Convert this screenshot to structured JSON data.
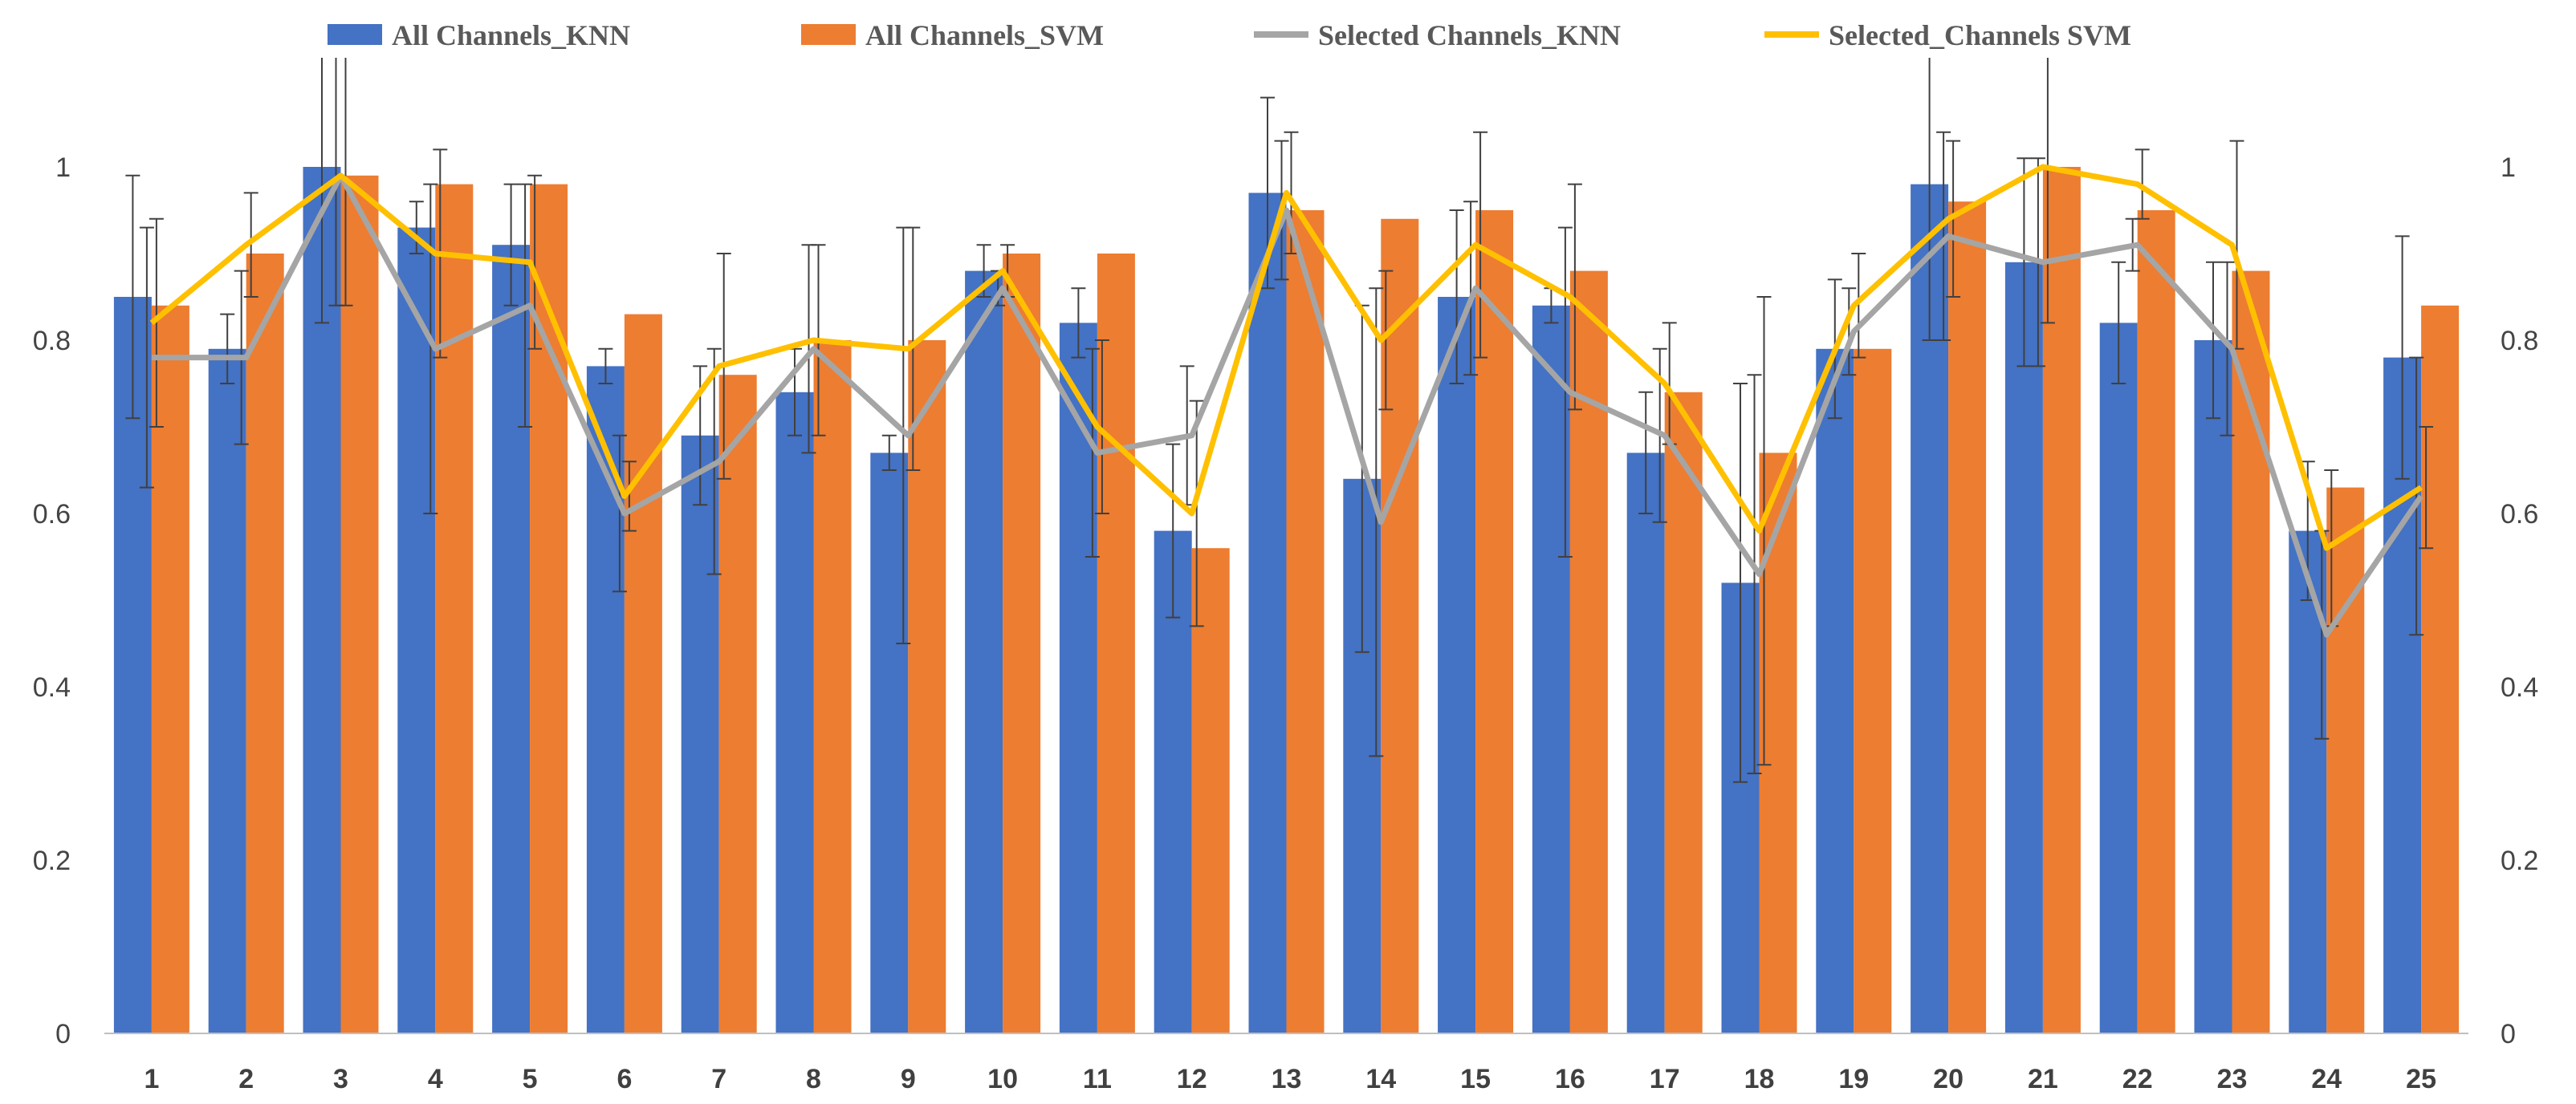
{
  "chart_data": {
    "type": "bar",
    "title": "",
    "xlabel": "",
    "ylabel": "",
    "ylim": [
      0,
      1.1
    ],
    "yticks": [
      0,
      0.2,
      0.4,
      0.6,
      0.8,
      1
    ],
    "ytick_labels": [
      "0",
      "0.2",
      "0.4",
      "0.6",
      "0.8",
      "1"
    ],
    "legend_position": "top",
    "grid": false,
    "categories": [
      "1",
      "2",
      "3",
      "4",
      "5",
      "6",
      "7",
      "8",
      "9",
      "10",
      "11",
      "12",
      "13",
      "14",
      "15",
      "16",
      "17",
      "18",
      "19",
      "20",
      "21",
      "22",
      "23",
      "24",
      "25"
    ],
    "bar_series": [
      {
        "name": "All Channels_KNN",
        "color": "#4472C4",
        "values": [
          0.85,
          0.79,
          1.0,
          0.93,
          0.91,
          0.77,
          0.69,
          0.74,
          0.67,
          0.88,
          0.82,
          0.58,
          0.97,
          0.64,
          0.85,
          0.84,
          0.67,
          0.52,
          0.79,
          0.98,
          0.89,
          0.82,
          0.8,
          0.58,
          0.78
        ],
        "errors": [
          0.14,
          0.04,
          0.18,
          0.03,
          0.07,
          0.02,
          0.08,
          0.05,
          0.02,
          0.03,
          0.04,
          0.1,
          0.11,
          0.2,
          0.1,
          0.02,
          0.07,
          0.23,
          0.08,
          0.18,
          0.12,
          0.07,
          0.09,
          0.08,
          0.14
        ]
      },
      {
        "name": "All Channels_SVM",
        "color": "#ED7D31",
        "values": [
          0.84,
          0.9,
          0.99,
          0.98,
          0.98,
          0.83,
          0.76,
          0.8,
          0.8,
          0.9,
          0.9,
          0.56,
          0.95,
          0.94,
          0.95,
          0.88,
          0.74,
          0.67,
          0.79,
          0.96,
          1.0,
          0.95,
          0.88,
          0.63,
          0.84
        ]
      }
    ],
    "line_series": [
      {
        "name": "Selected Channels_KNN",
        "color": "#A5A5A5",
        "values": [
          0.78,
          0.78,
          0.99,
          0.79,
          0.84,
          0.6,
          0.66,
          0.79,
          0.69,
          0.86,
          0.67,
          0.69,
          0.95,
          0.59,
          0.86,
          0.74,
          0.69,
          0.53,
          0.81,
          0.92,
          0.89,
          0.91,
          0.79,
          0.46,
          0.62
        ],
        "errors": [
          0.15,
          0.1,
          0.15,
          0.19,
          0.14,
          0.09,
          0.13,
          0.12,
          0.24,
          0.02,
          0.12,
          0.08,
          0.08,
          0.27,
          0.1,
          0.19,
          0.1,
          0.23,
          0.05,
          0.12,
          0.12,
          0.03,
          0.1,
          0.12,
          0.16
        ]
      },
      {
        "name": "Selected_Channels SVM",
        "color": "#FFC000",
        "values": [
          0.82,
          0.91,
          0.99,
          0.9,
          0.89,
          0.62,
          0.77,
          0.8,
          0.79,
          0.88,
          0.7,
          0.6,
          0.97,
          0.8,
          0.91,
          0.85,
          0.75,
          0.58,
          0.84,
          0.94,
          1.0,
          0.98,
          0.91,
          0.56,
          0.63
        ],
        "errors": [
          0.12,
          0.06,
          0.15,
          0.12,
          0.1,
          0.04,
          0.13,
          0.11,
          0.14,
          0.03,
          0.1,
          0.13,
          0.07,
          0.08,
          0.13,
          0.13,
          0.07,
          0.27,
          0.06,
          0.09,
          0.18,
          0.04,
          0.12,
          0.09,
          0.07
        ]
      }
    ]
  }
}
